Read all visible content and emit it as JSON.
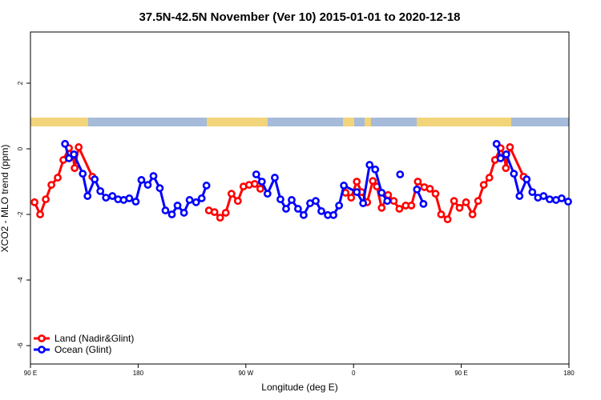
{
  "chart_data": {
    "type": "line",
    "title": "37.5N-42.5N November (Ver 10)   2015-01-01 to 2020-12-18",
    "x_label": "Longitude (deg E)",
    "y_label": "XCO2 - MLO trend (ppm)",
    "xlim": [
      90,
      540
    ],
    "ylim": [
      -6.56,
      3.56
    ],
    "xticks": [
      {
        "value": 90,
        "label": "90 E"
      },
      180,
      {
        "value": 270,
        "label": "90 W"
      },
      {
        "value": 360,
        "label": "0"
      },
      {
        "value": 450,
        "label": "90 E"
      },
      {
        "value": 540,
        "label": "180"
      }
    ],
    "yticks": [
      -6,
      -4,
      -2,
      0,
      2
    ],
    "legend": "bottom-left",
    "series": [
      {
        "name": "Land (Nadir&Glint)",
        "color": "#ff0000",
        "x": [
          93.4,
          98.1,
          102.8,
          107.5,
          112.8,
          117.5,
          122.2,
          125.6,
          126.9,
          130.3,
          141.7,
          null,
          239.1,
          243.8,
          248.5,
          253.2,
          258.0,
          263.3,
          268.0,
          272.7,
          277.4,
          282.1,
          null,
          353.3,
          358.0,
          362.7,
          366.7,
          371.4,
          376.1,
          379.5,
          383.5,
          388.9,
          393.6,
          398.3,
          403.6,
          408.3,
          413.7,
          419.1,
          423.8,
          428.5,
          433.2,
          438.6,
          444.0,
          448.6,
          454.0,
          459.4,
          464.1,
          468.8,
          473.5,
          478.2,
          482.9,
          486.2,
          487.3,
          490.7,
          502.1
        ],
        "values": [
          -1.63,
          -2.0,
          -1.54,
          -1.1,
          -0.88,
          -0.34,
          0.02,
          -0.22,
          -0.59,
          0.05,
          -0.85,
          null,
          -1.88,
          -1.93,
          -2.1,
          -1.95,
          -1.37,
          -1.59,
          -1.15,
          -1.1,
          -1.07,
          -1.22,
          null,
          -1.34,
          -1.49,
          -1.0,
          -1.32,
          -1.63,
          -0.98,
          -1.15,
          -1.8,
          -1.41,
          -1.59,
          -1.83,
          -1.73,
          -1.73,
          -1.0,
          -1.17,
          -1.22,
          -1.37,
          -2.0,
          -2.15,
          -1.59,
          -1.8,
          -1.63,
          -2.0,
          -1.59,
          -1.1,
          -0.88,
          -0.34,
          0.02,
          -0.22,
          -0.59,
          0.05,
          -0.85
        ]
      },
      {
        "name": "Ocean (Glint)",
        "color": "#0000ff",
        "x": [
          118.9,
          122.2,
          126.3,
          133.7,
          137.7,
          143.7,
          148.4,
          153.1,
          158.5,
          163.2,
          167.9,
          172.6,
          178.0,
          182.7,
          188.1,
          192.8,
          198.1,
          202.8,
          208.2,
          212.9,
          218.3,
          223.0,
          228.4,
          233.1,
          237.1,
          null,
          278.7,
          283.4,
          288.1,
          294.2,
          298.9,
          303.6,
          308.3,
          313.6,
          318.3,
          323.7,
          328.4,
          333.1,
          338.5,
          343.2,
          347.9,
          351.9,
          362.7,
          368.0,
          373.4,
          378.1,
          383.5,
          388.2,
          null,
          398.9,
          null,
          413.0,
          418.4,
          null,
          479.5,
          482.9,
          487.6,
          494.0,
          498.7,
          504.7,
          509.4,
          514.1,
          518.8,
          523.9,
          529.2,
          533.9,
          539.3
        ],
        "values": [
          0.15,
          -0.29,
          -0.17,
          -0.76,
          -1.44,
          -0.93,
          -1.29,
          -1.49,
          -1.44,
          -1.54,
          -1.56,
          -1.51,
          -1.61,
          -0.95,
          -1.1,
          -0.83,
          -1.2,
          -1.88,
          -2.0,
          -1.73,
          -1.95,
          -1.56,
          -1.63,
          -1.51,
          -1.12,
          null,
          -0.78,
          -1.0,
          -1.37,
          -0.88,
          -1.54,
          -1.83,
          -1.56,
          -1.83,
          -2.02,
          -1.66,
          -1.59,
          -1.9,
          -2.02,
          -2.02,
          -1.73,
          -1.12,
          -1.32,
          -1.66,
          -0.49,
          -0.63,
          -1.34,
          -1.59,
          null,
          -0.78,
          null,
          -1.24,
          -1.68,
          null,
          0.15,
          -0.29,
          -0.17,
          -0.76,
          -1.44,
          -0.93,
          -1.32,
          -1.49,
          -1.44,
          -1.54,
          -1.56,
          -1.51,
          -1.61
        ]
      }
    ]
  }
}
